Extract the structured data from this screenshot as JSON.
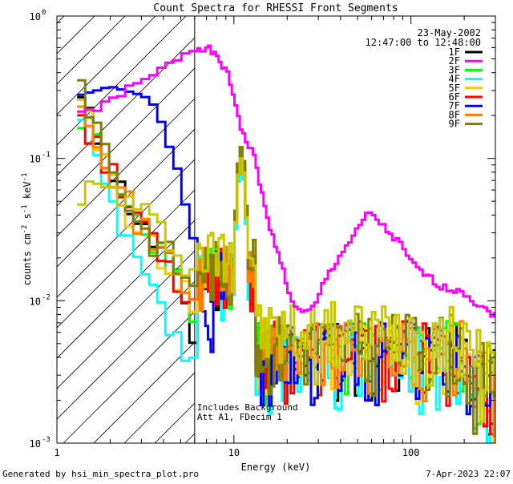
{
  "chart_data": {
    "type": "line",
    "title": "Count Spectra for RHESSI Front Segments",
    "xlabel": "Energy (keV)",
    "ylabel_parts": [
      "counts cm",
      "-2",
      " s",
      "-1",
      " keV",
      "-1"
    ],
    "x_scale": "log",
    "y_scale": "log",
    "xlim": [
      1,
      300
    ],
    "ylim": [
      0.001,
      1
    ],
    "x_tick_labels": [
      {
        "value": 1,
        "label": "1"
      },
      {
        "value": 10,
        "label": "10"
      },
      {
        "value": 100,
        "label": "100"
      }
    ],
    "y_tick_labels": [
      {
        "value": 1,
        "base": "10",
        "exp": "0"
      },
      {
        "value": 0.1,
        "base": "10",
        "exp": "-1"
      },
      {
        "value": 0.01,
        "base": "10",
        "exp": "-2"
      },
      {
        "value": 0.001,
        "base": "10",
        "exp": "-3"
      }
    ],
    "date": "23-May-2002",
    "time_range": "12:47:00 to 12:48:00",
    "hatched_region_keV": [
      1,
      6
    ],
    "annotation_lines": [
      "Includes Background",
      "Att A1, FDecim 1"
    ],
    "annotation_at": {
      "energy_keV": 6,
      "counts": 0.00135
    },
    "legend_position": "top-right",
    "series": [
      {
        "name": "1F",
        "color": "#000000",
        "seed": 11,
        "low": [
          [
            1.3,
            0.25
          ],
          [
            1.7,
            0.12
          ],
          [
            2.2,
            0.06
          ],
          [
            3,
            0.03
          ],
          [
            4,
            0.02
          ],
          [
            5,
            0.01
          ],
          [
            6,
            0.004
          ]
        ],
        "peak_height": 0.1,
        "high_level": 0.004
      },
      {
        "name": "2F",
        "color": "#ff00ff",
        "is_smooth": true,
        "points": [
          [
            1.3,
            0.22
          ],
          [
            1.6,
            0.22
          ],
          [
            1.9,
            0.25
          ],
          [
            2.3,
            0.3
          ],
          [
            3,
            0.35
          ],
          [
            4,
            0.45
          ],
          [
            5,
            0.55
          ],
          [
            6,
            0.6
          ],
          [
            7,
            0.6
          ],
          [
            8,
            0.5
          ],
          [
            9,
            0.4
          ],
          [
            10,
            0.25
          ],
          [
            11,
            0.15
          ],
          [
            12,
            0.12
          ],
          [
            13,
            0.1
          ],
          [
            14,
            0.06
          ],
          [
            15,
            0.04
          ],
          [
            16,
            0.03
          ],
          [
            18,
            0.02
          ],
          [
            20,
            0.011
          ],
          [
            24,
            0.008
          ],
          [
            28,
            0.009
          ],
          [
            32,
            0.014
          ],
          [
            40,
            0.022
          ],
          [
            48,
            0.03
          ],
          [
            55,
            0.04
          ],
          [
            60,
            0.04
          ],
          [
            70,
            0.032
          ],
          [
            85,
            0.025
          ],
          [
            100,
            0.018
          ],
          [
            120,
            0.015
          ],
          [
            140,
            0.013
          ],
          [
            160,
            0.012
          ],
          [
            190,
            0.012
          ],
          [
            220,
            0.01
          ],
          [
            260,
            0.0085
          ],
          [
            300,
            0.008
          ]
        ]
      },
      {
        "name": "3F",
        "color": "#00ff00",
        "seed": 23,
        "low": [
          [
            1.3,
            0.2
          ],
          [
            1.7,
            0.11
          ],
          [
            2.2,
            0.055
          ],
          [
            3,
            0.03
          ],
          [
            4,
            0.022
          ],
          [
            5,
            0.01
          ],
          [
            6,
            0.005
          ]
        ],
        "peak_height": 0.11,
        "high_level": 0.004
      },
      {
        "name": "4F",
        "color": "#00ffff",
        "seed": 37,
        "low": [
          [
            1.3,
            0.17
          ],
          [
            1.7,
            0.07
          ],
          [
            2.2,
            0.03
          ],
          [
            3,
            0.014
          ],
          [
            4,
            0.007
          ],
          [
            5,
            0.004
          ],
          [
            6,
            0.004
          ]
        ],
        "peak_height": 0.09,
        "high_level": 0.0035
      },
      {
        "name": "5F",
        "color": "#ffc800",
        "seed": 41,
        "low": [
          [
            1.3,
            0.22
          ],
          [
            1.7,
            0.12
          ],
          [
            2.2,
            0.05
          ],
          [
            3,
            0.03
          ],
          [
            4,
            0.018
          ],
          [
            5,
            0.012
          ],
          [
            6,
            0.008
          ]
        ],
        "peak_height": 0.1,
        "high_level": 0.004
      },
      {
        "name": "6F",
        "color": "#ff0000",
        "seed": 53,
        "low": [
          [
            1.3,
            0.22
          ],
          [
            1.7,
            0.11
          ],
          [
            2.2,
            0.055
          ],
          [
            3,
            0.035
          ],
          [
            4,
            0.02
          ],
          [
            5,
            0.012
          ],
          [
            6,
            0.008
          ]
        ],
        "peak_height": 0.1,
        "high_level": 0.004
      },
      {
        "name": "7F",
        "color": "#0000ff",
        "is_smooth": true,
        "points": [
          [
            1.3,
            0.28
          ],
          [
            1.6,
            0.3
          ],
          [
            1.9,
            0.32
          ],
          [
            2.3,
            0.3
          ],
          [
            2.8,
            0.28
          ],
          [
            3.2,
            0.26
          ],
          [
            3.6,
            0.2
          ],
          [
            4,
            0.13
          ],
          [
            4.5,
            0.09
          ],
          [
            5,
            0.05
          ],
          [
            5.5,
            0.03
          ],
          [
            6,
            0.02
          ],
          [
            6.5,
            0.01
          ],
          [
            7,
            0.006
          ],
          [
            7.5,
            0.004
          ]
        ],
        "peak_height": 0.12,
        "high_level": 0.004,
        "seed": 67
      },
      {
        "name": "8F",
        "color": "#ff7f00",
        "seed": 71,
        "low": [
          [
            1.3,
            0.3
          ],
          [
            1.7,
            0.13
          ],
          [
            2.2,
            0.06
          ],
          [
            3,
            0.03
          ],
          [
            4,
            0.02
          ],
          [
            5,
            0.014
          ],
          [
            6,
            0.01
          ]
        ],
        "peak_height": 0.12,
        "high_level": 0.004
      },
      {
        "name": "9F",
        "color": "#808000",
        "seed": 83,
        "low": [
          [
            1.3,
            0.35
          ],
          [
            1.7,
            0.14
          ],
          [
            2.2,
            0.06
          ],
          [
            3,
            0.03
          ],
          [
            4,
            0.022
          ],
          [
            5,
            0.015
          ],
          [
            6,
            0.01
          ]
        ],
        "peak_height": 0.12,
        "high_level": 0.0045
      },
      {
        "name": "",
        "color": "#c8c800",
        "seed": 97,
        "unlisted": true,
        "low": [
          [
            2,
            0.06
          ],
          [
            3,
            0.04
          ],
          [
            4,
            0.028
          ],
          [
            5,
            0.02
          ],
          [
            6,
            0.015
          ],
          [
            7,
            0.014
          ]
        ],
        "peak_height": 0.1,
        "high_level": 0.0055
      }
    ]
  },
  "footer": {
    "left": "Generated by hsi_min_spectra_plot.pro",
    "right": "7-Apr-2023 22:07"
  }
}
